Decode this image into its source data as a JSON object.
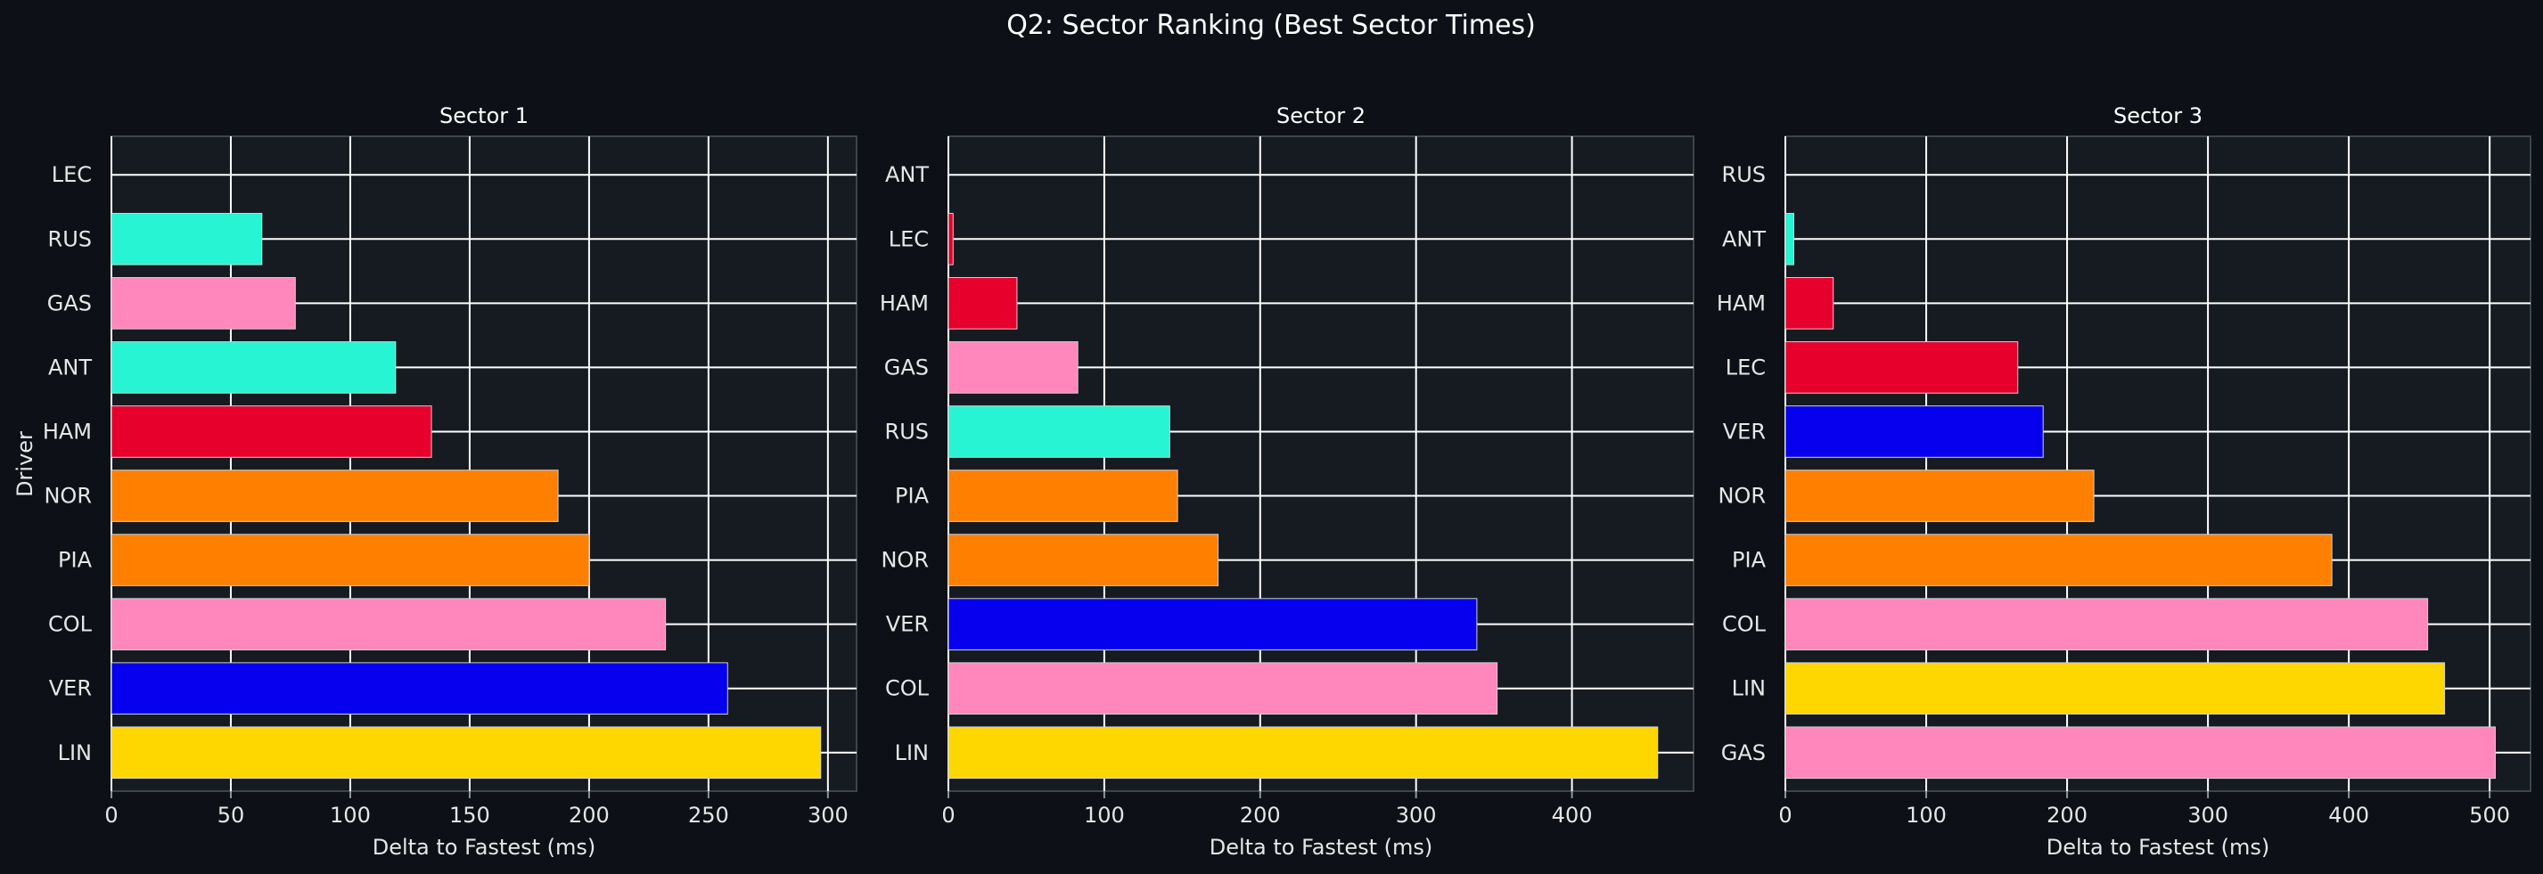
{
  "chart_data": {
    "type": "bar",
    "orientation": "horizontal",
    "title": "Q2: Sector Ranking (Best Sector Times)",
    "ylabel": "Driver",
    "grid": true,
    "background": "#0d1117",
    "plot_background": "#161b22",
    "team_colors": {
      "Mercedes": "#27f4d2",
      "Alpine": "#ff87bc",
      "Ferrari": "#e8002d",
      "McLaren": "#ff8000",
      "Red Bull": "#0600ef",
      "Aston Martin": "#ffd700"
    },
    "panels": [
      {
        "title": "Sector 1",
        "xlabel": "Delta to Fastest (ms)",
        "xlim": [
          0,
          312
        ],
        "xticks": [
          0,
          50,
          100,
          150,
          200,
          250,
          300
        ],
        "bars": [
          {
            "driver": "LEC",
            "value": 0,
            "color": "#e8002d"
          },
          {
            "driver": "RUS",
            "value": 63,
            "color": "#27f4d2"
          },
          {
            "driver": "GAS",
            "value": 77,
            "color": "#ff87bc"
          },
          {
            "driver": "ANT",
            "value": 119,
            "color": "#27f4d2"
          },
          {
            "driver": "HAM",
            "value": 134,
            "color": "#e8002d"
          },
          {
            "driver": "NOR",
            "value": 187,
            "color": "#ff8000"
          },
          {
            "driver": "PIA",
            "value": 200,
            "color": "#ff8000"
          },
          {
            "driver": "COL",
            "value": 232,
            "color": "#ff87bc"
          },
          {
            "driver": "VER",
            "value": 258,
            "color": "#0600ef"
          },
          {
            "driver": "LIN",
            "value": 297,
            "color": "#ffd700"
          }
        ]
      },
      {
        "title": "Sector 2",
        "xlabel": "Delta to Fastest (ms)",
        "xlim": [
          0,
          478
        ],
        "xticks": [
          0,
          100,
          200,
          300,
          400
        ],
        "bars": [
          {
            "driver": "ANT",
            "value": 0,
            "color": "#27f4d2"
          },
          {
            "driver": "LEC",
            "value": 3,
            "color": "#e8002d"
          },
          {
            "driver": "HAM",
            "value": 44,
            "color": "#e8002d"
          },
          {
            "driver": "GAS",
            "value": 83,
            "color": "#ff87bc"
          },
          {
            "driver": "RUS",
            "value": 142,
            "color": "#27f4d2"
          },
          {
            "driver": "PIA",
            "value": 147,
            "color": "#ff8000"
          },
          {
            "driver": "NOR",
            "value": 173,
            "color": "#ff8000"
          },
          {
            "driver": "VER",
            "value": 339,
            "color": "#0600ef"
          },
          {
            "driver": "COL",
            "value": 352,
            "color": "#ff87bc"
          },
          {
            "driver": "LIN",
            "value": 455,
            "color": "#ffd700"
          }
        ]
      },
      {
        "title": "Sector 3",
        "xlabel": "Delta to Fastest (ms)",
        "xlim": [
          0,
          529
        ],
        "xticks": [
          0,
          100,
          200,
          300,
          400,
          500
        ],
        "bars": [
          {
            "driver": "RUS",
            "value": 0,
            "color": "#27f4d2"
          },
          {
            "driver": "ANT",
            "value": 6,
            "color": "#27f4d2"
          },
          {
            "driver": "HAM",
            "value": 34,
            "color": "#e8002d"
          },
          {
            "driver": "LEC",
            "value": 165,
            "color": "#e8002d"
          },
          {
            "driver": "VER",
            "value": 183,
            "color": "#0600ef"
          },
          {
            "driver": "NOR",
            "value": 219,
            "color": "#ff8000"
          },
          {
            "driver": "PIA",
            "value": 388,
            "color": "#ff8000"
          },
          {
            "driver": "COL",
            "value": 456,
            "color": "#ff87bc"
          },
          {
            "driver": "LIN",
            "value": 468,
            "color": "#ffd700"
          },
          {
            "driver": "GAS",
            "value": 504,
            "color": "#ff87bc"
          }
        ]
      }
    ]
  }
}
